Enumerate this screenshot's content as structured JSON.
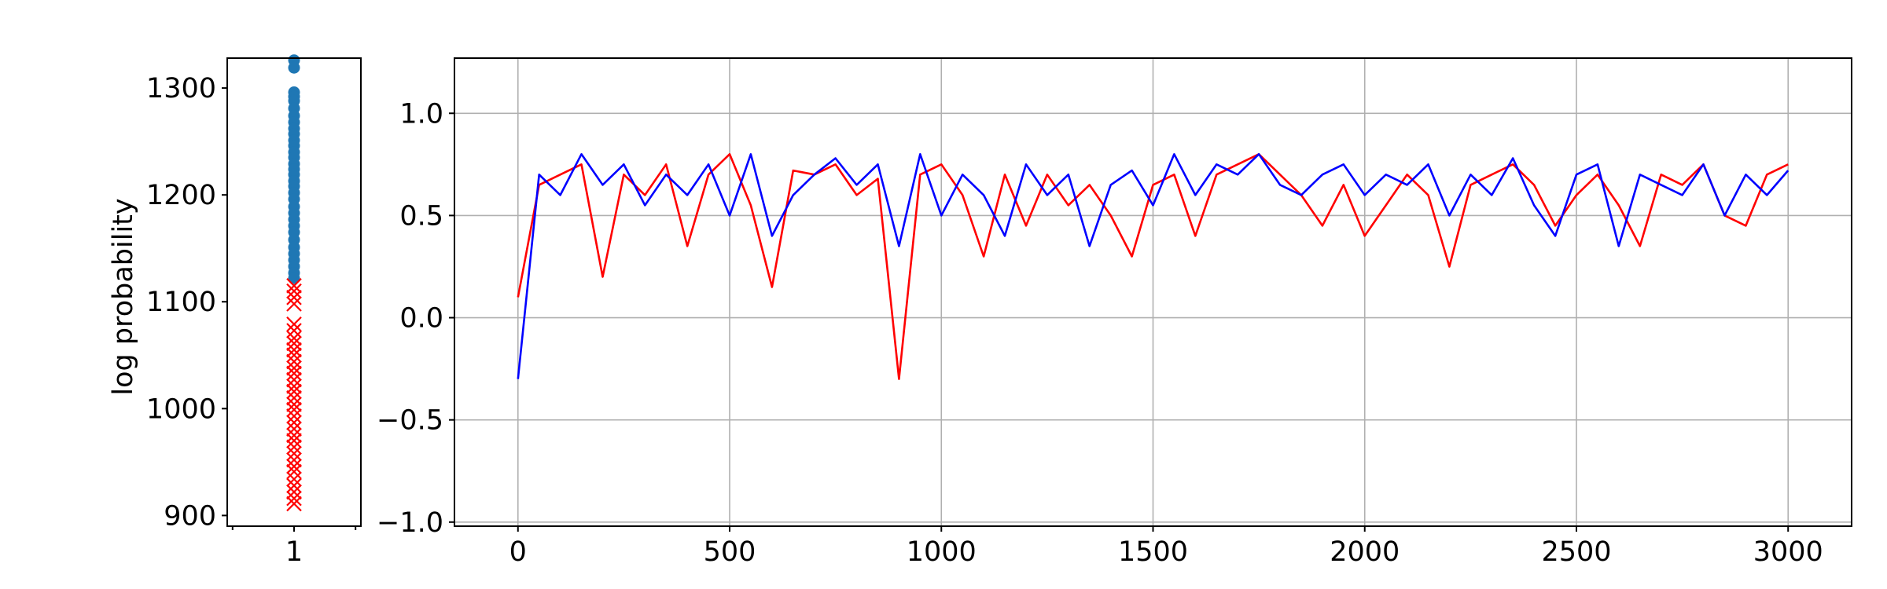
{
  "chart_data": [
    {
      "type": "scatter",
      "ylabel": "log probability",
      "xlim": [
        0.75,
        1.25
      ],
      "ylim": [
        890,
        1328
      ],
      "x_ticks": [
        1
      ],
      "x_tick_labels": [
        "1"
      ],
      "y_ticks": [
        900,
        1000,
        1100,
        1200,
        1300
      ],
      "y_tick_labels": [
        "900",
        "1000",
        "1100",
        "1200",
        "1300"
      ],
      "grid": false,
      "series": [
        {
          "marker": "circle",
          "color": "#1f77b4",
          "x": 1,
          "values": [
            1326,
            1319,
            1296,
            1292,
            1288,
            1281,
            1274,
            1268,
            1262,
            1257,
            1251,
            1246,
            1240,
            1235,
            1229,
            1224,
            1219,
            1213,
            1208,
            1202,
            1196,
            1189,
            1183,
            1177,
            1171,
            1165,
            1158,
            1151,
            1145,
            1139,
            1133,
            1127,
            1122
          ]
        },
        {
          "marker": "x",
          "color": "#ff0000",
          "x": 1,
          "values": [
            1115,
            1110,
            1104,
            1098,
            1079,
            1073,
            1066,
            1061,
            1055,
            1050,
            1044,
            1038,
            1033,
            1027,
            1021,
            1016,
            1010,
            1004,
            999,
            993,
            987,
            981,
            975,
            970,
            964,
            958,
            952,
            946,
            941,
            934,
            928,
            922,
            916,
            911
          ]
        }
      ]
    },
    {
      "type": "line",
      "xlim": [
        -150,
        3150
      ],
      "ylim": [
        -1.02,
        1.27
      ],
      "x_ticks": [
        0,
        500,
        1000,
        1500,
        2000,
        2500,
        3000
      ],
      "x_tick_labels": [
        "0",
        "500",
        "1000",
        "1500",
        "2000",
        "2500",
        "3000"
      ],
      "y_ticks": [
        -1.0,
        -0.5,
        0.0,
        0.5,
        1.0
      ],
      "y_tick_labels": [
        "−1.0",
        "−0.5",
        "0.0",
        "0.5",
        "1.0"
      ],
      "grid": true,
      "series": [
        {
          "color": "#ff0000",
          "x": [
            0,
            50,
            100,
            150,
            200,
            250,
            300,
            350,
            400,
            450,
            500,
            550,
            600,
            650,
            700,
            750,
            800,
            850,
            900,
            950,
            1000,
            1050,
            1100,
            1150,
            1200,
            1250,
            1300,
            1350,
            1400,
            1450,
            1500,
            1550,
            1600,
            1650,
            1700,
            1750,
            1800,
            1850,
            1900,
            1950,
            2000,
            2050,
            2100,
            2150,
            2200,
            2250,
            2300,
            2350,
            2400,
            2450,
            2500,
            2550,
            2600,
            2650,
            2700,
            2750,
            2800,
            2850,
            2900,
            2950,
            3000
          ],
          "values": [
            0.1,
            0.65,
            0.7,
            0.75,
            0.2,
            0.7,
            0.6,
            0.75,
            0.35,
            0.7,
            0.8,
            0.55,
            0.15,
            0.72,
            0.7,
            0.75,
            0.6,
            0.68,
            -0.3,
            0.7,
            0.75,
            0.6,
            0.3,
            0.7,
            0.45,
            0.7,
            0.55,
            0.65,
            0.5,
            0.3,
            0.65,
            0.7,
            0.4,
            0.7,
            0.75,
            0.8,
            0.7,
            0.6,
            0.45,
            0.65,
            0.4,
            0.55,
            0.7,
            0.6,
            0.25,
            0.65,
            0.7,
            0.75,
            0.65,
            0.45,
            0.6,
            0.7,
            0.55,
            0.35,
            0.7,
            0.65,
            0.75,
            0.5,
            0.45,
            0.7,
            0.75
          ]
        },
        {
          "color": "#0000ff",
          "x": [
            0,
            50,
            100,
            150,
            200,
            250,
            300,
            350,
            400,
            450,
            500,
            550,
            600,
            650,
            700,
            750,
            800,
            850,
            900,
            950,
            1000,
            1050,
            1100,
            1150,
            1200,
            1250,
            1300,
            1350,
            1400,
            1450,
            1500,
            1550,
            1600,
            1650,
            1700,
            1750,
            1800,
            1850,
            1900,
            1950,
            2000,
            2050,
            2100,
            2150,
            2200,
            2250,
            2300,
            2350,
            2400,
            2450,
            2500,
            2550,
            2600,
            2650,
            2700,
            2750,
            2800,
            2850,
            2900,
            2950,
            3000
          ],
          "values": [
            -0.3,
            0.7,
            0.6,
            0.8,
            0.65,
            0.75,
            0.55,
            0.7,
            0.6,
            0.75,
            0.5,
            0.8,
            0.4,
            0.6,
            0.7,
            0.78,
            0.65,
            0.75,
            0.35,
            0.8,
            0.5,
            0.7,
            0.6,
            0.4,
            0.75,
            0.6,
            0.7,
            0.35,
            0.65,
            0.72,
            0.55,
            0.8,
            0.6,
            0.75,
            0.7,
            0.8,
            0.65,
            0.6,
            0.7,
            0.75,
            0.6,
            0.7,
            0.65,
            0.75,
            0.5,
            0.7,
            0.6,
            0.78,
            0.55,
            0.4,
            0.7,
            0.75,
            0.35,
            0.7,
            0.65,
            0.6,
            0.75,
            0.5,
            0.7,
            0.6,
            0.72
          ]
        }
      ]
    }
  ]
}
